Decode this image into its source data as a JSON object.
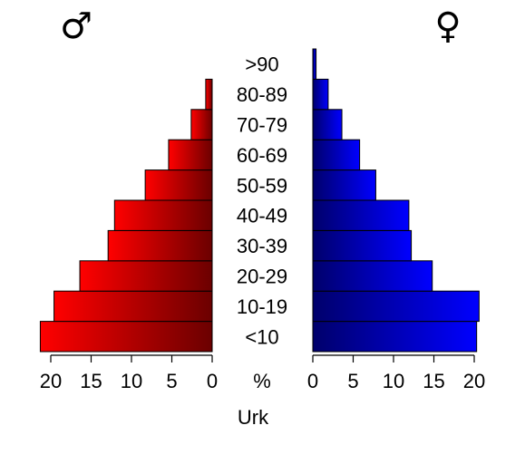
{
  "chart_data": {
    "type": "bar",
    "orientation": "horizontal-pyramid",
    "categories": [
      "<10",
      "10-19",
      "20-29",
      "30-39",
      "40-49",
      "50-59",
      "60-69",
      "70-79",
      "80-89",
      ">90"
    ],
    "series": [
      {
        "symbol": "♂",
        "side": "left",
        "color_light": "#ff0000",
        "color_dark": "#6b0000",
        "values": [
          21.3,
          19.6,
          16.4,
          12.9,
          12.1,
          8.3,
          5.4,
          2.6,
          0.8,
          0.0
        ]
      },
      {
        "symbol": "♀",
        "side": "right",
        "color_light": "#0000ff",
        "color_dark": "#00006b",
        "values": [
          20.3,
          20.6,
          14.8,
          12.2,
          11.9,
          7.8,
          5.8,
          3.6,
          1.9,
          0.4
        ]
      }
    ],
    "xlim": [
      0,
      20
    ],
    "ticks": [
      0,
      5,
      10,
      15,
      20
    ],
    "tick_labels": [
      "0",
      "5",
      "10",
      "15",
      "20"
    ],
    "center_axis_label": "%",
    "caption": "Urk"
  }
}
